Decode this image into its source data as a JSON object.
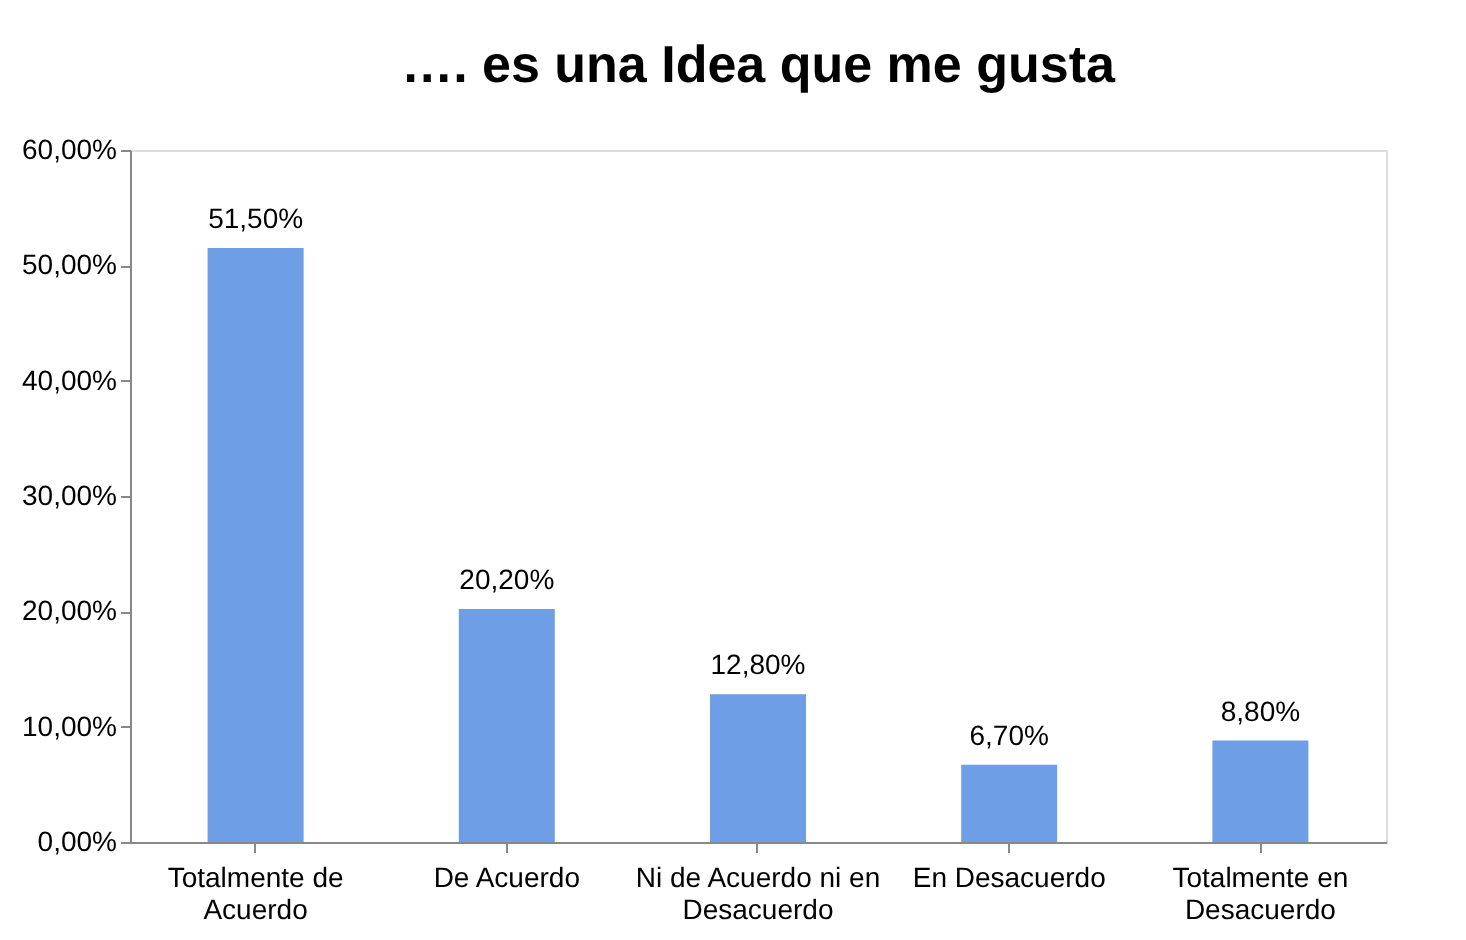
{
  "chart_data": {
    "type": "bar",
    "title": "…. es una Idea que me gusta",
    "categories": [
      "Totalmente de Acuerdo",
      "De Acuerdo",
      "Ni de Acuerdo ni en Desacuerdo",
      "En Desacuerdo",
      "Totalmente en Desacuerdo"
    ],
    "values": [
      51.5,
      20.2,
      12.8,
      6.7,
      8.8
    ],
    "value_labels": [
      "51,50%",
      "20,20%",
      "12,80%",
      "6,70%",
      "8,80%"
    ],
    "color": "#6d9ee6",
    "ylim": [
      0,
      60
    ],
    "yticks": [
      {
        "value": 0,
        "label": "0,00%"
      },
      {
        "value": 10,
        "label": "10,00%"
      },
      {
        "value": 20,
        "label": "20,00%"
      },
      {
        "value": 30,
        "label": "30,00%"
      },
      {
        "value": 40,
        "label": "40,00%"
      },
      {
        "value": 50,
        "label": "50,00%"
      },
      {
        "value": 60,
        "label": "60,00%"
      }
    ],
    "grid": false
  }
}
